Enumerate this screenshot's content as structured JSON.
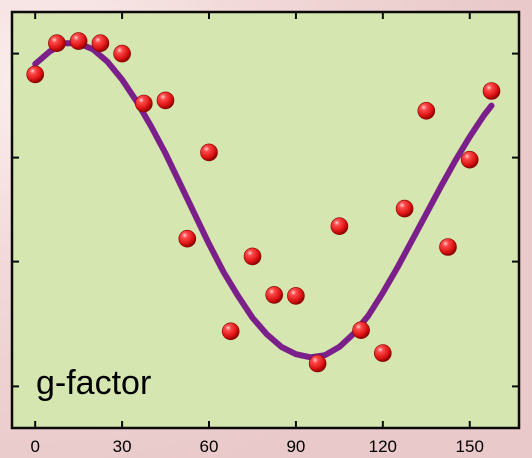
{
  "chart_data": {
    "type": "scatter",
    "title": "",
    "xlabel": "",
    "ylabel": "",
    "annotation": "g-factor",
    "xlim": [
      -8,
      167
    ],
    "xticks": [
      0,
      30,
      60,
      90,
      120,
      150
    ],
    "yticks": [
      -1,
      0.2,
      1.2,
      2.2
    ],
    "ylim": [
      -1.4,
      2.6
    ],
    "grid": false,
    "legend": "none",
    "colors": {
      "plot_background": "#d5e6b0",
      "frame": "#0a0a0a",
      "points": "#e01818",
      "fit_line": "#7b1f8a",
      "outer_background": "#f3dcdc"
    },
    "series": [
      {
        "type": "scatter",
        "x": [
          0,
          7.5,
          15,
          22.5,
          30,
          37.5,
          45,
          52.5,
          60,
          67.5,
          75,
          82.5,
          90,
          97.5,
          105,
          112.5,
          120,
          127.5,
          135,
          142.5,
          150,
          157.5
        ],
        "y": [
          2.0,
          2.3,
          2.32,
          2.3,
          2.2,
          1.72,
          1.75,
          0.42,
          1.25,
          -0.47,
          0.25,
          -0.12,
          -0.13,
          -0.78,
          0.54,
          -0.46,
          -0.68,
          0.71,
          1.65,
          0.34,
          1.18,
          1.84
        ]
      },
      {
        "type": "line",
        "x": [
          0,
          5,
          10,
          15,
          20,
          25,
          30,
          35,
          40,
          45,
          50,
          55,
          60,
          65,
          70,
          75,
          80,
          85,
          90,
          95,
          100,
          105,
          110,
          115,
          120,
          125,
          130,
          135,
          140,
          145,
          150,
          155,
          157.5
        ],
        "y": [
          2.1,
          2.22,
          2.3,
          2.3,
          2.24,
          2.12,
          1.95,
          1.74,
          1.5,
          1.24,
          0.95,
          0.66,
          0.37,
          0.1,
          -0.13,
          -0.34,
          -0.5,
          -0.62,
          -0.69,
          -0.72,
          -0.7,
          -0.62,
          -0.49,
          -0.32,
          -0.1,
          0.14,
          0.4,
          0.66,
          0.92,
          1.17,
          1.4,
          1.61,
          1.7
        ]
      }
    ]
  }
}
